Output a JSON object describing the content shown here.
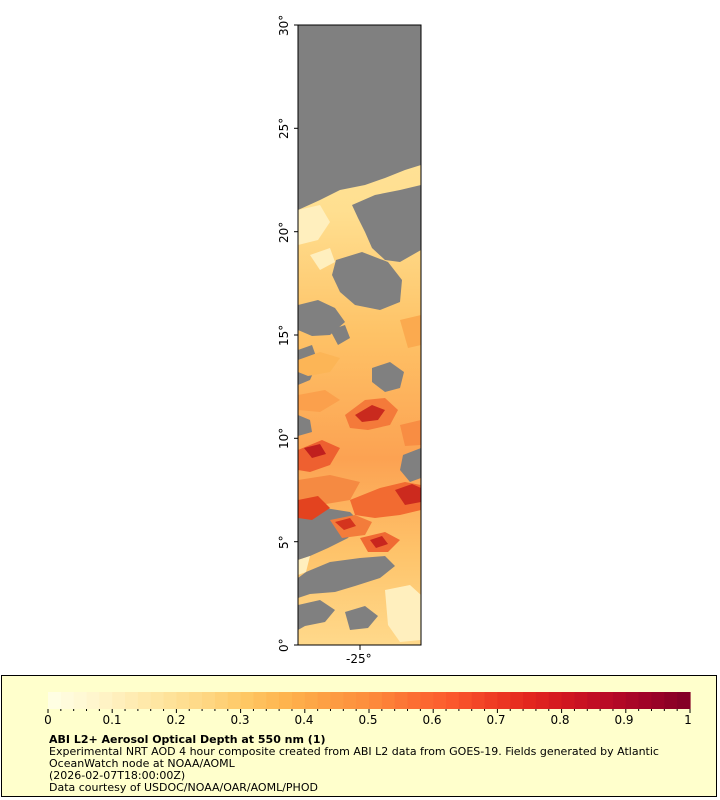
{
  "map": {
    "lat_axis_labels": [
      "0°",
      "5°",
      "10°",
      "15°",
      "20°",
      "25°",
      "30°"
    ],
    "lon_axis_labels": [
      "-25°"
    ],
    "colors": {
      "no_data": "#808080",
      "low": "#ffe8a8",
      "mid": "#fdb04b",
      "high": "#e8401c",
      "very_high": "#a01228"
    }
  },
  "legend": {
    "tick_labels": [
      "0",
      "0.1",
      "0.2",
      "0.3",
      "0.4",
      "0.5",
      "0.6",
      "0.7",
      "0.8",
      "0.9",
      "1"
    ],
    "title": "ABI L2+ Aerosol Optical Depth at 550 nm (1)",
    "description": "Experimental NRT AOD 4 hour composite created from ABI L2 data from GOES-19. Fields generated by Atlantic OceanWatch node at NOAA/AOML",
    "date": "(2026-02-07T18:00:00Z)",
    "credit": "Data courtesy of USDOC/NOAA/OAR/AOML/PHOD",
    "colors": [
      "#ffffe6",
      "#fff7d1",
      "#ffedb5",
      "#fee39a",
      "#fed681",
      "#fec662",
      "#feb24c",
      "#fd9e43",
      "#fd8d3c",
      "#fc7134",
      "#fc5a2d",
      "#f03e24",
      "#e3261e",
      "#cf1520",
      "#b80a26",
      "#9e0227",
      "#800026"
    ]
  }
}
